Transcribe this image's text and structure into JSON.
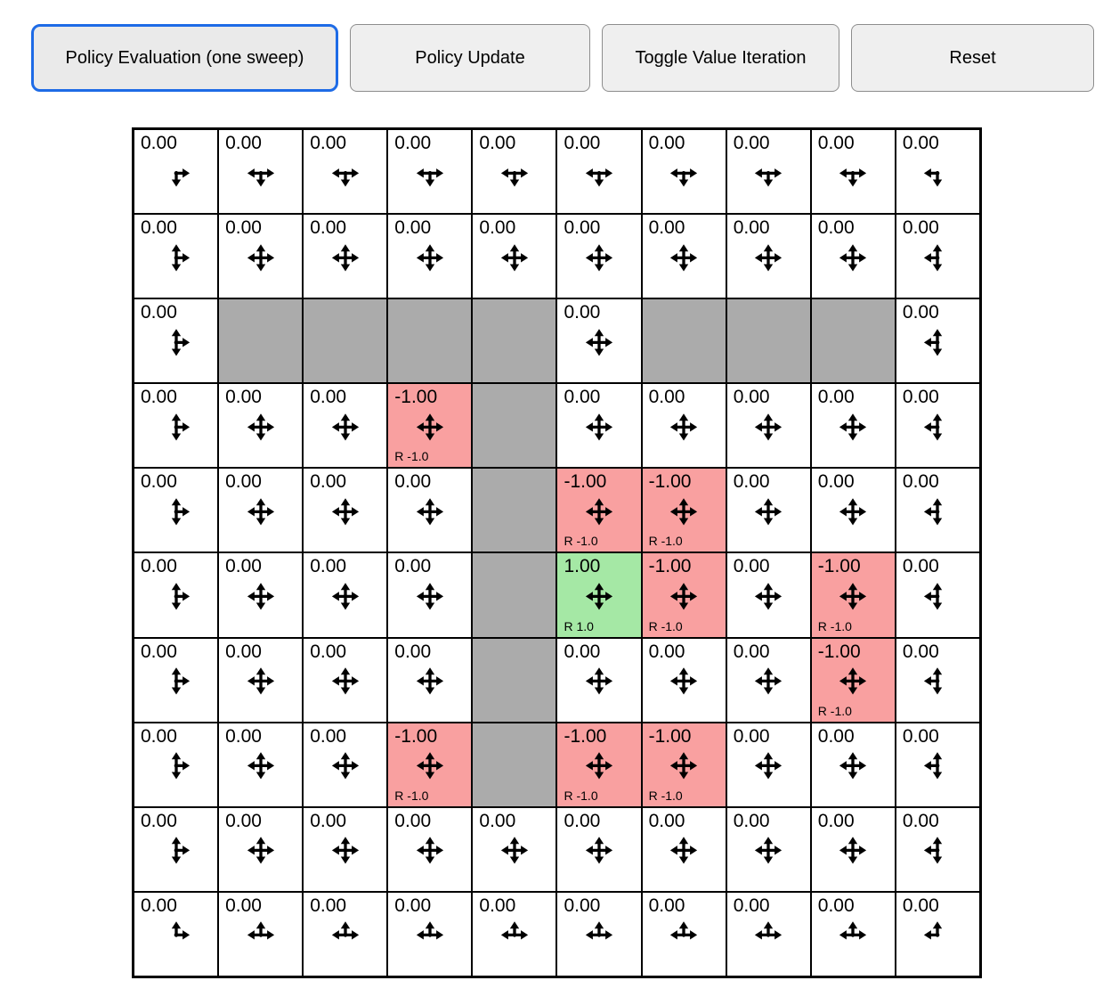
{
  "toolbar": {
    "buttons": [
      {
        "label": "Policy Evaluation (one sweep)",
        "active": true
      },
      {
        "label": "Policy Update",
        "active": false
      },
      {
        "label": "Toggle Value Iteration",
        "active": false
      },
      {
        "label": "Reset",
        "active": false
      }
    ]
  },
  "colors": {
    "wall": "#ababab",
    "negative_cell": "#f9a0a0",
    "positive_cell": "#a5e8a5",
    "grid_line": "#000000",
    "active_button_border": "#1e6be6",
    "button_bg": "#efefef"
  },
  "grid": {
    "rows_count": 10,
    "cols_count": 10,
    "rows": [
      [
        {
          "v": "0.00",
          "d": "RD"
        },
        {
          "v": "0.00",
          "d": "LRD"
        },
        {
          "v": "0.00",
          "d": "LRD"
        },
        {
          "v": "0.00",
          "d": "LRD"
        },
        {
          "v": "0.00",
          "d": "LRD"
        },
        {
          "v": "0.00",
          "d": "LRD"
        },
        {
          "v": "0.00",
          "d": "LRD"
        },
        {
          "v": "0.00",
          "d": "LRD"
        },
        {
          "v": "0.00",
          "d": "LRD"
        },
        {
          "v": "0.00",
          "d": "LD"
        }
      ],
      [
        {
          "v": "0.00",
          "d": "URD"
        },
        {
          "v": "0.00",
          "d": "ULRD"
        },
        {
          "v": "0.00",
          "d": "ULRD"
        },
        {
          "v": "0.00",
          "d": "ULRD"
        },
        {
          "v": "0.00",
          "d": "ULRD"
        },
        {
          "v": "0.00",
          "d": "ULRD"
        },
        {
          "v": "0.00",
          "d": "ULRD"
        },
        {
          "v": "0.00",
          "d": "ULRD"
        },
        {
          "v": "0.00",
          "d": "ULRD"
        },
        {
          "v": "0.00",
          "d": "ULD"
        }
      ],
      [
        {
          "v": "0.00",
          "d": "URD"
        },
        {
          "t": "wall"
        },
        {
          "t": "wall"
        },
        {
          "t": "wall"
        },
        {
          "t": "wall"
        },
        {
          "v": "0.00",
          "d": "ULRD"
        },
        {
          "t": "wall"
        },
        {
          "t": "wall"
        },
        {
          "t": "wall"
        },
        {
          "v": "0.00",
          "d": "ULD"
        }
      ],
      [
        {
          "v": "0.00",
          "d": "URD"
        },
        {
          "v": "0.00",
          "d": "ULRD"
        },
        {
          "v": "0.00",
          "d": "ULRD"
        },
        {
          "v": "-1.00",
          "t": "neg",
          "r": "R -1.0",
          "d": "ULRD"
        },
        {
          "t": "wall"
        },
        {
          "v": "0.00",
          "d": "ULRD"
        },
        {
          "v": "0.00",
          "d": "ULRD"
        },
        {
          "v": "0.00",
          "d": "ULRD"
        },
        {
          "v": "0.00",
          "d": "ULRD"
        },
        {
          "v": "0.00",
          "d": "ULD"
        }
      ],
      [
        {
          "v": "0.00",
          "d": "URD"
        },
        {
          "v": "0.00",
          "d": "ULRD"
        },
        {
          "v": "0.00",
          "d": "ULRD"
        },
        {
          "v": "0.00",
          "d": "ULRD"
        },
        {
          "t": "wall"
        },
        {
          "v": "-1.00",
          "t": "neg",
          "r": "R -1.0",
          "d": "ULRD"
        },
        {
          "v": "-1.00",
          "t": "neg",
          "r": "R -1.0",
          "d": "ULRD"
        },
        {
          "v": "0.00",
          "d": "ULRD"
        },
        {
          "v": "0.00",
          "d": "ULRD"
        },
        {
          "v": "0.00",
          "d": "ULD"
        }
      ],
      [
        {
          "v": "0.00",
          "d": "URD"
        },
        {
          "v": "0.00",
          "d": "ULRD"
        },
        {
          "v": "0.00",
          "d": "ULRD"
        },
        {
          "v": "0.00",
          "d": "ULRD"
        },
        {
          "t": "wall"
        },
        {
          "v": "1.00",
          "t": "pos",
          "r": "R 1.0",
          "d": "ULRD"
        },
        {
          "v": "-1.00",
          "t": "neg",
          "r": "R -1.0",
          "d": "ULRD"
        },
        {
          "v": "0.00",
          "d": "ULRD"
        },
        {
          "v": "-1.00",
          "t": "neg",
          "r": "R -1.0",
          "d": "ULRD"
        },
        {
          "v": "0.00",
          "d": "ULD"
        }
      ],
      [
        {
          "v": "0.00",
          "d": "URD"
        },
        {
          "v": "0.00",
          "d": "ULRD"
        },
        {
          "v": "0.00",
          "d": "ULRD"
        },
        {
          "v": "0.00",
          "d": "ULRD"
        },
        {
          "t": "wall"
        },
        {
          "v": "0.00",
          "d": "ULRD"
        },
        {
          "v": "0.00",
          "d": "ULRD"
        },
        {
          "v": "0.00",
          "d": "ULRD"
        },
        {
          "v": "-1.00",
          "t": "neg",
          "r": "R -1.0",
          "d": "ULRD"
        },
        {
          "v": "0.00",
          "d": "ULD"
        }
      ],
      [
        {
          "v": "0.00",
          "d": "URD"
        },
        {
          "v": "0.00",
          "d": "ULRD"
        },
        {
          "v": "0.00",
          "d": "ULRD"
        },
        {
          "v": "-1.00",
          "t": "neg",
          "r": "R -1.0",
          "d": "ULRD"
        },
        {
          "t": "wall"
        },
        {
          "v": "-1.00",
          "t": "neg",
          "r": "R -1.0",
          "d": "ULRD"
        },
        {
          "v": "-1.00",
          "t": "neg",
          "r": "R -1.0",
          "d": "ULRD"
        },
        {
          "v": "0.00",
          "d": "ULRD"
        },
        {
          "v": "0.00",
          "d": "ULRD"
        },
        {
          "v": "0.00",
          "d": "ULD"
        }
      ],
      [
        {
          "v": "0.00",
          "d": "URD"
        },
        {
          "v": "0.00",
          "d": "ULRD"
        },
        {
          "v": "0.00",
          "d": "ULRD"
        },
        {
          "v": "0.00",
          "d": "ULRD"
        },
        {
          "v": "0.00",
          "d": "ULRD"
        },
        {
          "v": "0.00",
          "d": "ULRD"
        },
        {
          "v": "0.00",
          "d": "ULRD"
        },
        {
          "v": "0.00",
          "d": "ULRD"
        },
        {
          "v": "0.00",
          "d": "ULRD"
        },
        {
          "v": "0.00",
          "d": "ULD"
        }
      ],
      [
        {
          "v": "0.00",
          "d": "UR"
        },
        {
          "v": "0.00",
          "d": "ULR"
        },
        {
          "v": "0.00",
          "d": "ULR"
        },
        {
          "v": "0.00",
          "d": "ULR"
        },
        {
          "v": "0.00",
          "d": "ULR"
        },
        {
          "v": "0.00",
          "d": "ULR"
        },
        {
          "v": "0.00",
          "d": "ULR"
        },
        {
          "v": "0.00",
          "d": "ULR"
        },
        {
          "v": "0.00",
          "d": "ULR"
        },
        {
          "v": "0.00",
          "d": "UL"
        }
      ]
    ]
  }
}
